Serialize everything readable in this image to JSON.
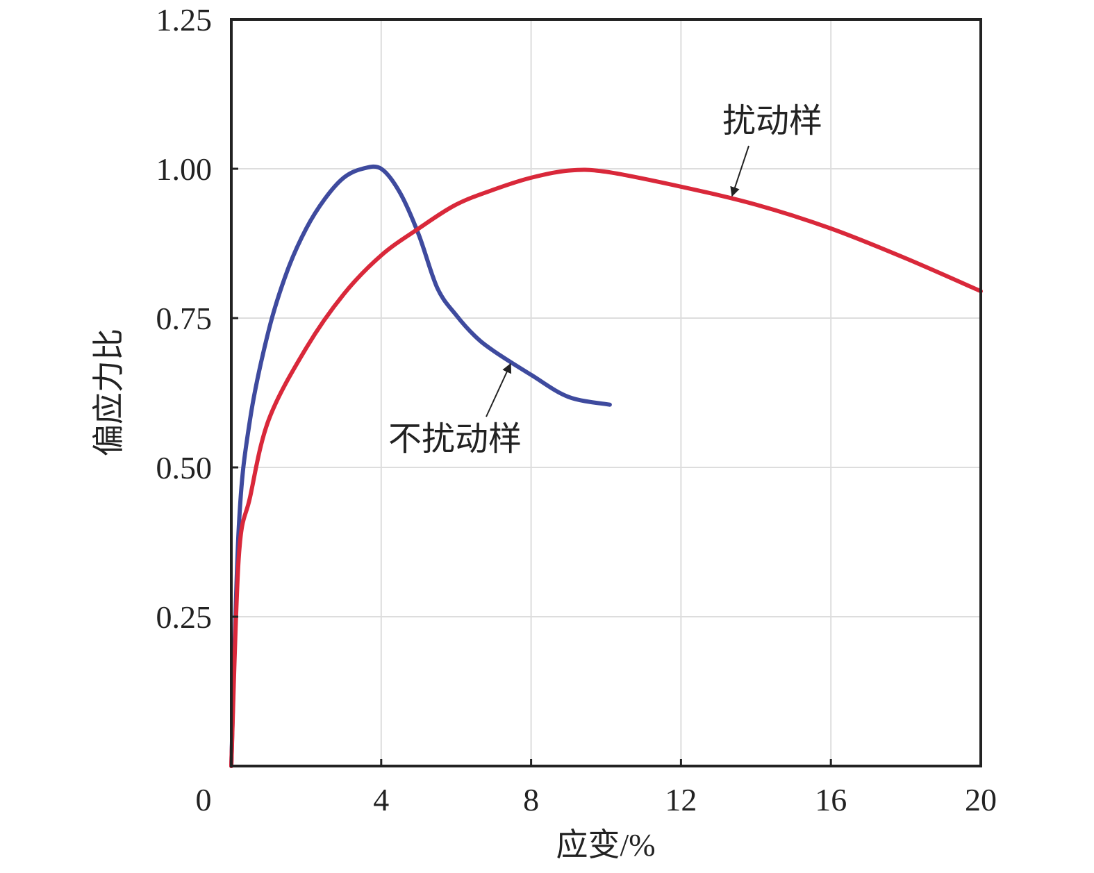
{
  "chart_data": {
    "type": "line",
    "xlabel": "应变/%",
    "ylabel": "偏应力比",
    "xlim": [
      0,
      20
    ],
    "ylim": [
      0,
      1.25
    ],
    "xticks": [
      0,
      4,
      8,
      12,
      16,
      20
    ],
    "yticks": [
      {
        "value": 0.25,
        "label": "0.25"
      },
      {
        "value": 0.5,
        "label": "0.50"
      },
      {
        "value": 0.75,
        "label": "0.75"
      },
      {
        "value": 1.0,
        "label": "1.00"
      },
      {
        "value": 1.25,
        "label": "1.25"
      }
    ],
    "grid": true,
    "series": [
      {
        "name": "不扰动样",
        "color": "#3e4a9e",
        "x": [
          0,
          0.2,
          0.5,
          1.0,
          1.5,
          2.0,
          2.5,
          3.0,
          3.5,
          4.0,
          4.5,
          5.0,
          5.5,
          6.0,
          6.5,
          7.0,
          8.0,
          9.0,
          10.1
        ],
        "values": [
          0,
          0.4,
          0.58,
          0.73,
          0.83,
          0.9,
          0.95,
          0.985,
          1.0,
          1.0,
          0.96,
          0.89,
          0.8,
          0.755,
          0.72,
          0.695,
          0.655,
          0.618,
          0.605
        ]
      },
      {
        "name": "扰动样",
        "color": "#d9283a",
        "x": [
          0,
          0.2,
          0.5,
          1.0,
          2.0,
          3.0,
          4.0,
          5.0,
          6.0,
          7.0,
          8.0,
          9.0,
          10.0,
          12.0,
          14.0,
          16.0,
          18.0,
          20.0
        ],
        "values": [
          0,
          0.35,
          0.45,
          0.58,
          0.7,
          0.79,
          0.855,
          0.9,
          0.94,
          0.965,
          0.985,
          0.997,
          0.995,
          0.97,
          0.94,
          0.9,
          0.85,
          0.795
        ]
      }
    ],
    "annotations": [
      {
        "text": "扰动样"
      },
      {
        "text": "不扰动样"
      }
    ]
  }
}
